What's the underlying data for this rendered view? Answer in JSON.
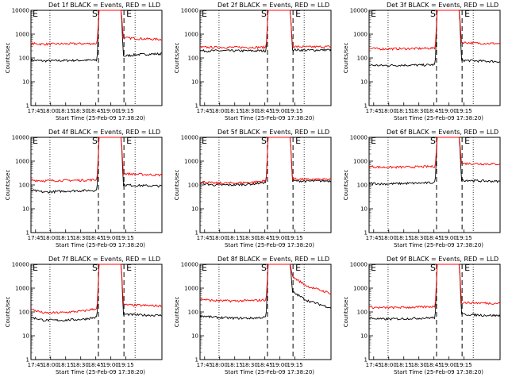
{
  "figure": {
    "colors": {
      "events": "#000000",
      "lld": "#ff0000",
      "background": "#ffffff",
      "axes": "#000000"
    },
    "shared": {
      "xlabel": "Start Time (25-Feb-09 17:38:20)",
      "ylabel": "Counts/sec",
      "x_ticks": [
        "17:45",
        "18:00",
        "18:15",
        "18:30",
        "18:45",
        "19:00",
        "19:15"
      ],
      "y_ticks": [
        "1",
        "10",
        "100",
        "1000",
        "10000"
      ],
      "markers": {
        "start": "S",
        "end": "E"
      }
    }
  },
  "chart_data": [
    {
      "type": "line",
      "title": "Det 1f BLACK = Events, RED = LLD",
      "xlabel": "Start Time (25-Feb-09 17:38:20)",
      "ylabel": "Counts/sec",
      "y_scale": "log",
      "ylim": [
        1,
        10000
      ],
      "x_ticks": [
        "17:45",
        "18:00",
        "18:15",
        "18:30",
        "18:45",
        "19:00",
        "19:15"
      ],
      "y_ticks": [
        "1",
        "10",
        "100",
        "1000",
        "10000"
      ],
      "events": [
        "S",
        "E"
      ],
      "series": [
        {
          "values": [
            80,
            75,
            78,
            80,
            80,
            10000,
            10000,
            120,
            140,
            150
          ]
        },
        {
          "values": [
            400,
            380,
            390,
            400,
            400,
            10000,
            10000,
            700,
            650,
            600
          ]
        }
      ]
    },
    {
      "type": "line",
      "title": "Det 2f BLACK = Events, RED = LLD",
      "xlabel": "Start Time (25-Feb-09 17:38:20)",
      "ylabel": "Counts/sec",
      "y_scale": "log",
      "ylim": [
        1,
        10000
      ],
      "x_ticks": [
        "17:45",
        "18:00",
        "18:15",
        "18:30",
        "18:45",
        "19:00",
        "19:15"
      ],
      "y_ticks": [
        "1",
        "10",
        "100",
        "1000",
        "10000"
      ],
      "events": [
        "S",
        "E"
      ],
      "series": [
        {
          "values": [
            200,
            200,
            200,
            200,
            200,
            10000,
            10000,
            220,
            210,
            220
          ]
        },
        {
          "values": [
            280,
            280,
            280,
            280,
            280,
            10000,
            10000,
            300,
            290,
            300
          ]
        }
      ]
    },
    {
      "type": "line",
      "title": "Det 3f BLACK = Events, RED = LLD",
      "xlabel": "Start Time (25-Feb-09 17:38:20)",
      "ylabel": "Counts/sec",
      "y_scale": "log",
      "ylim": [
        1,
        10000
      ],
      "x_ticks": [
        "17:45",
        "18:00",
        "18:15",
        "18:30",
        "18:45",
        "19:00",
        "19:15"
      ],
      "y_ticks": [
        "1",
        "10",
        "100",
        "1000",
        "10000"
      ],
      "events": [
        "S",
        "E"
      ],
      "series": [
        {
          "values": [
            50,
            48,
            50,
            50,
            52,
            10000,
            10000,
            80,
            75,
            70
          ]
        },
        {
          "values": [
            250,
            240,
            245,
            250,
            260,
            10000,
            10000,
            450,
            420,
            400
          ]
        }
      ]
    },
    {
      "type": "line",
      "title": "Det 4f BLACK = Events, RED = LLD",
      "xlabel": "Start Time (25-Feb-09 17:38:20)",
      "ylabel": "Counts/sec",
      "y_scale": "log",
      "ylim": [
        1,
        10000
      ],
      "x_ticks": [
        "17:45",
        "18:00",
        "18:15",
        "18:30",
        "18:45",
        "19:00",
        "19:15"
      ],
      "y_ticks": [
        "1",
        "10",
        "100",
        "1000",
        "10000"
      ],
      "events": [
        "S",
        "E"
      ],
      "series": [
        {
          "values": [
            60,
            50,
            55,
            58,
            60,
            10000,
            10000,
            100,
            95,
            90
          ]
        },
        {
          "values": [
            160,
            150,
            155,
            158,
            165,
            10000,
            10000,
            300,
            280,
            260
          ]
        }
      ]
    },
    {
      "type": "line",
      "title": "Det 5f BLACK = Events, RED = LLD",
      "xlabel": "Start Time (25-Feb-09 17:38:20)",
      "ylabel": "Counts/sec",
      "y_scale": "log",
      "ylim": [
        1,
        10000
      ],
      "x_ticks": [
        "17:45",
        "18:00",
        "18:15",
        "18:30",
        "18:45",
        "19:00",
        "19:15"
      ],
      "y_ticks": [
        "1",
        "10",
        "100",
        "1000",
        "10000"
      ],
      "events": [
        "S",
        "E"
      ],
      "series": [
        {
          "values": [
            120,
            100,
            100,
            110,
            130,
            10000,
            10000,
            150,
            145,
            150
          ]
        },
        {
          "values": [
            140,
            120,
            120,
            130,
            150,
            10000,
            10000,
            180,
            170,
            170
          ]
        }
      ]
    },
    {
      "type": "line",
      "title": "Det 6f BLACK = Events, RED = LLD",
      "xlabel": "Start Time (25-Feb-09 17:38:20)",
      "ylabel": "Counts/sec",
      "y_scale": "log",
      "ylim": [
        1,
        10000
      ],
      "x_ticks": [
        "17:45",
        "18:00",
        "18:15",
        "18:30",
        "18:45",
        "19:00",
        "19:15"
      ],
      "y_ticks": [
        "1",
        "10",
        "100",
        "1000",
        "10000"
      ],
      "events": [
        "S",
        "E"
      ],
      "series": [
        {
          "values": [
            120,
            110,
            115,
            120,
            125,
            10000,
            10000,
            160,
            150,
            140
          ]
        },
        {
          "values": [
            600,
            550,
            560,
            580,
            600,
            10000,
            10000,
            800,
            780,
            750
          ]
        }
      ]
    },
    {
      "type": "line",
      "title": "Det 7f BLACK = Events, RED = LLD",
      "xlabel": "Start Time (25-Feb-09 17:38:20)",
      "ylabel": "Counts/sec",
      "y_scale": "log",
      "ylim": [
        1,
        10000
      ],
      "x_ticks": [
        "17:45",
        "18:00",
        "18:15",
        "18:30",
        "18:45",
        "19:00",
        "19:15"
      ],
      "y_ticks": [
        "1",
        "10",
        "100",
        "1000",
        "10000"
      ],
      "events": [
        "S",
        "E"
      ],
      "series": [
        {
          "values": [
            60,
            45,
            45,
            50,
            60,
            10000,
            10000,
            80,
            75,
            72
          ]
        },
        {
          "values": [
            130,
            90,
            95,
            110,
            140,
            10000,
            10000,
            200,
            190,
            180
          ]
        }
      ]
    },
    {
      "type": "line",
      "title": "Det 8f BLACK = Events, RED = LLD",
      "xlabel": "Start Time (25-Feb-09 17:38:20)",
      "ylabel": "Counts/sec",
      "y_scale": "log",
      "ylim": [
        1,
        10000
      ],
      "x_ticks": [
        "17:45",
        "18:00",
        "18:15",
        "18:30",
        "18:45",
        "19:00",
        "19:15"
      ],
      "y_ticks": [
        "1",
        "10",
        "100",
        "1000",
        "10000"
      ],
      "events": [
        "S",
        "E"
      ],
      "series": [
        {
          "values": [
            70,
            60,
            55,
            55,
            60,
            10000,
            10000,
            700,
            300,
            150
          ]
        },
        {
          "values": [
            350,
            300,
            290,
            300,
            320,
            10000,
            10000,
            3000,
            1200,
            600
          ]
        }
      ]
    },
    {
      "type": "line",
      "title": "Det 9f BLACK = Events, RED = LLD",
      "xlabel": "Start Time (25-Feb-09 17:38:20)",
      "ylabel": "Counts/sec",
      "y_scale": "log",
      "ylim": [
        1,
        10000
      ],
      "x_ticks": [
        "17:45",
        "18:00",
        "18:15",
        "18:30",
        "18:45",
        "19:00",
        "19:15"
      ],
      "y_ticks": [
        "1",
        "10",
        "100",
        "1000",
        "10000"
      ],
      "events": [
        "S",
        "E"
      ],
      "series": [
        {
          "values": [
            55,
            50,
            52,
            55,
            58,
            10000,
            10000,
            80,
            75,
            70
          ]
        },
        {
          "values": [
            160,
            150,
            155,
            160,
            170,
            10000,
            10000,
            250,
            240,
            230
          ]
        }
      ]
    }
  ]
}
